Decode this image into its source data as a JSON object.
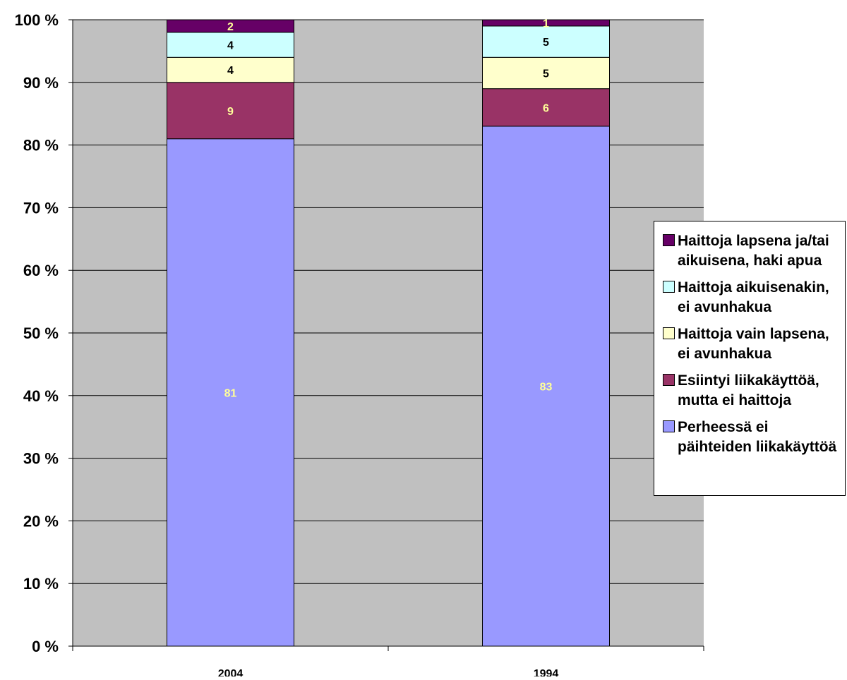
{
  "chart_data": {
    "type": "bar",
    "stacked": true,
    "percent_stacked": true,
    "categories": [
      "2004",
      "1994"
    ],
    "series": [
      {
        "name": "Perheessä ei päihteiden liikakäyttöä",
        "values": [
          81,
          83
        ],
        "color": "#9999ff",
        "label_color": "#ffff99"
      },
      {
        "name": "Esiintyi liikakäyttöä, mutta ei haittoja",
        "values": [
          9,
          6
        ],
        "color": "#993366",
        "label_color": "#ffff99"
      },
      {
        "name": "Haittoja vain lapsena, ei avunhakua",
        "values": [
          4,
          5
        ],
        "color": "#ffffcc",
        "label_color": "#000000"
      },
      {
        "name": "Haittoja aikuisenakin, ei avunhakua",
        "values": [
          4,
          5
        ],
        "color": "#ccffff",
        "label_color": "#000000"
      },
      {
        "name": "Haittoja lapsena ja/tai aikuisena, haki apua",
        "values": [
          2,
          1
        ],
        "color": "#660066",
        "label_color": "#ffff99"
      }
    ],
    "y_ticks": [
      "0 %",
      "10 %",
      "20 %",
      "30 %",
      "40 %",
      "50 %",
      "60 %",
      "70 %",
      "80 %",
      "90 %",
      "100 %"
    ],
    "ylim": [
      0,
      100
    ],
    "title": "",
    "xlabel": "",
    "ylabel": "",
    "grid": true,
    "plot_background": "#c0c0c0",
    "legend_position": "right"
  },
  "legend": {
    "items": [
      {
        "label": "Haittoja lapsena ja/tai aikuisena, haki apua",
        "color": "#660066"
      },
      {
        "label": "Haittoja aikuisenakin, ei avunhakua",
        "color": "#ccffff"
      },
      {
        "label": "Haittoja vain lapsena, ei avunhakua",
        "color": "#ffffcc"
      },
      {
        "label": "Esiintyi liikakäyttöä, mutta ei haittoja",
        "color": "#993366"
      },
      {
        "label": "Perheessä ei päihteiden liikakäyttöä",
        "color": "#9999ff"
      }
    ]
  }
}
